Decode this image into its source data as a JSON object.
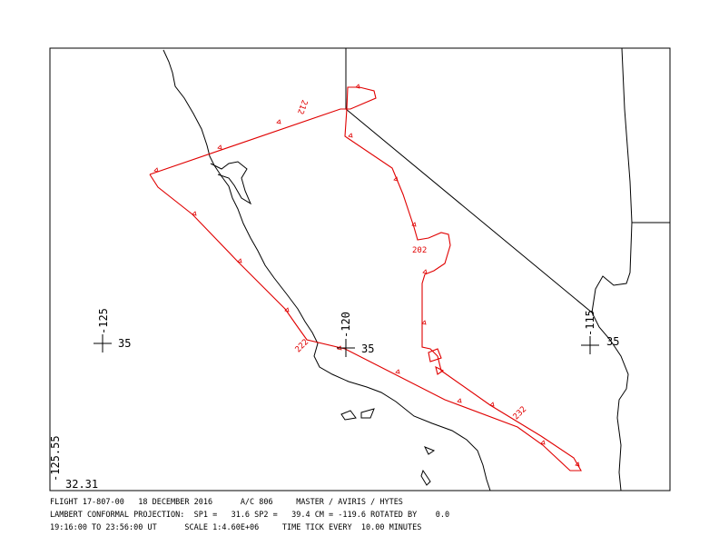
{
  "labels": {
    "track": [
      "212",
      "202",
      "222",
      "232"
    ],
    "grid": [
      "-125",
      "35",
      "-120",
      "35",
      "-115",
      "35"
    ],
    "corner_lon": "-125.55",
    "corner_lat": "32.31"
  },
  "footer": [
    "FLIGHT 17-807-00   18 DECEMBER 2016      A/C 806     MASTER / AVIRIS / HYTES",
    "LAMBERT CONFORMAL PROJECTION:  SP1 =   31.6 SP2 =   39.4 CM = -119.6 ROTATED BY    0.0",
    "19:16:00 TO 23:56:00 UT      SCALE 1:4.60E+06     TIME TICK EVERY  10.00 MINUTES"
  ]
}
